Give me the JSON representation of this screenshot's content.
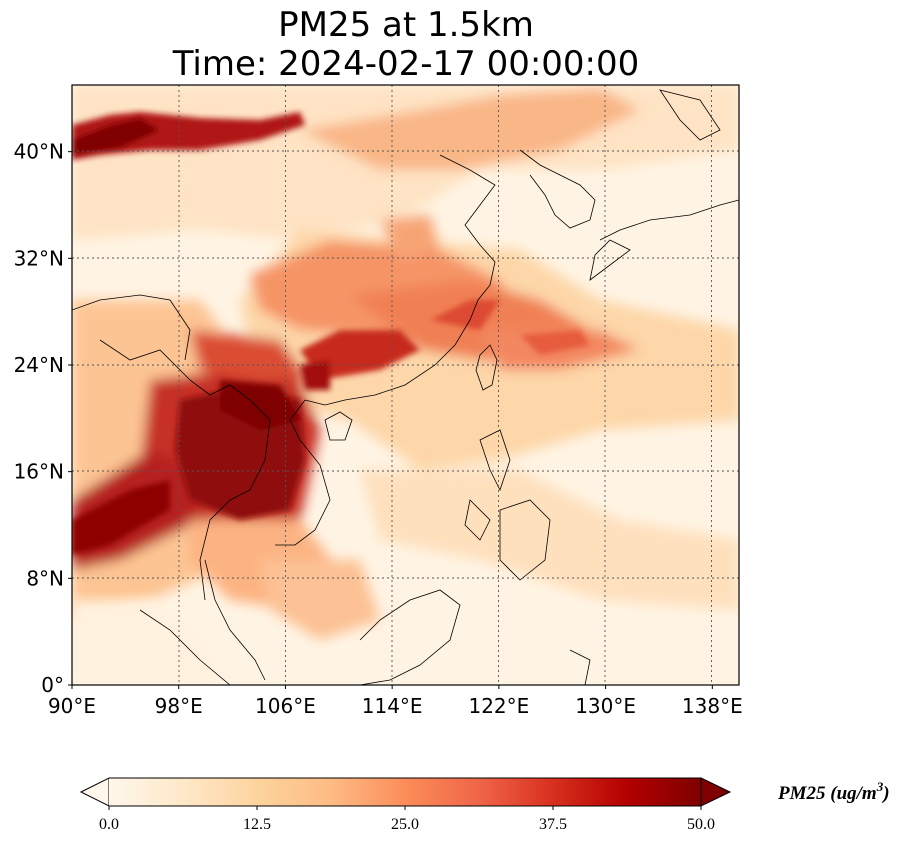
{
  "title": {
    "line1": "PM25 at 1.5km",
    "line2": "Time: 2024-02-17 00:00:00"
  },
  "map": {
    "type": "filled-map",
    "projection": "PlateCarree",
    "lon_range": [
      90,
      140
    ],
    "lat_range": [
      0,
      45
    ],
    "lon_ticks": [
      "90°E",
      "98°E",
      "106°E",
      "114°E",
      "122°E",
      "130°E",
      "138°E"
    ],
    "lon_tick_values": [
      90,
      98,
      106,
      114,
      122,
      130,
      138
    ],
    "lat_ticks": [
      "0°",
      "8°N",
      "16°N",
      "24°N",
      "32°N",
      "40°N"
    ],
    "lat_tick_values": [
      0,
      8,
      16,
      24,
      32,
      40
    ],
    "gridlines": "dotted",
    "colormap": "OrRd"
  },
  "colorbar": {
    "title": "PM25 (ug/m",
    "title_sup": "3",
    "title_close": ")",
    "ticks": [
      "0.0",
      "12.5",
      "25.0",
      "37.5",
      "50.0"
    ],
    "range": [
      0,
      50
    ],
    "extend": "both",
    "colors": [
      "#fff7ec",
      "#fee8c8",
      "#fdd49e",
      "#fdbb84",
      "#fc8d59",
      "#ef6548",
      "#d7301f",
      "#b30000",
      "#7f0000"
    ]
  }
}
